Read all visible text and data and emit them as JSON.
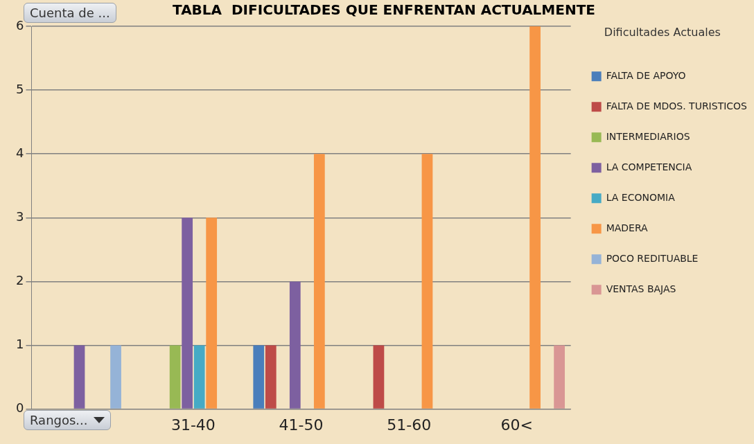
{
  "chart_data": {
    "type": "bar",
    "title": "TABLA  DIFICULTADES QUE ENFRENTAN ACTUALMENTE",
    "ylabel": "Cuenta de ...",
    "xlabel": "Rangos...",
    "legend_title": "Dificultades Actuales",
    "categories": [
      null,
      "31-40",
      "41-50",
      "51-60",
      "60<"
    ],
    "series": [
      {
        "name": "FALTA DE APOYO",
        "color": "#4a7ebb",
        "values": [
          null,
          null,
          1,
          null,
          null
        ]
      },
      {
        "name": "FALTA DE MDOS. TURISTICOS",
        "color": "#be4b48",
        "values": [
          null,
          null,
          1,
          1,
          null
        ]
      },
      {
        "name": "INTERMEDIARIOS",
        "color": "#98b954",
        "values": [
          null,
          1,
          null,
          null,
          null
        ]
      },
      {
        "name": "LA COMPETENCIA",
        "color": "#7d60a0",
        "values": [
          1,
          3,
          2,
          null,
          null
        ]
      },
      {
        "name": "LA ECONOMIA",
        "color": "#46aac5",
        "values": [
          null,
          1,
          null,
          null,
          null
        ]
      },
      {
        "name": "MADERA",
        "color": "#f79646",
        "values": [
          null,
          3,
          4,
          4,
          6
        ]
      },
      {
        "name": "POCO REDITUABLE",
        "color": "#95b3d7",
        "values": [
          1,
          null,
          null,
          null,
          null
        ]
      },
      {
        "name": "VENTAS BAJAS",
        "color": "#d99694",
        "values": [
          null,
          null,
          null,
          null,
          1
        ]
      }
    ],
    "ylim": [
      0,
      6
    ],
    "yticks": [
      0,
      1,
      2,
      3,
      4,
      5,
      6
    ],
    "grid": "y",
    "legend": "right"
  }
}
